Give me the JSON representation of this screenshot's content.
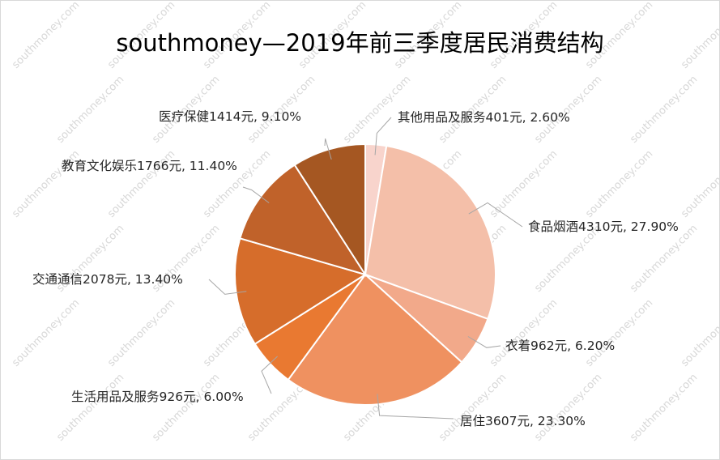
{
  "watermark": "southmoney.com",
  "chart_data": {
    "type": "pie",
    "title": "southmoney—2019年前三季度居民消费结构",
    "slices": [
      {
        "name": "其他用品及服务",
        "amount": 401,
        "value": 2.6,
        "label": "其他用品及服务401元, 2.60%",
        "color": "#f8d4cc"
      },
      {
        "name": "食品烟酒",
        "amount": 4310,
        "value": 27.9,
        "label": "食品烟酒4310元, 27.90%",
        "color": "#f4bfa9"
      },
      {
        "name": "衣着",
        "amount": 962,
        "value": 6.2,
        "label": "衣着962元, 6.20%",
        "color": "#f2a98a"
      },
      {
        "name": "居住",
        "amount": 3607,
        "value": 23.3,
        "label": "居住3607元, 23.30%",
        "color": "#ef9160"
      },
      {
        "name": "生活用品及服务",
        "amount": 926,
        "value": 6.0,
        "label": "生活用品及服务926元, 6.00%",
        "color": "#e97931"
      },
      {
        "name": "交通通信",
        "amount": 2078,
        "value": 13.4,
        "label": "交通通信2078元, 13.40%",
        "color": "#d66d2b"
      },
      {
        "name": "教育文化娱乐",
        "amount": 1766,
        "value": 11.4,
        "label": "教育文化娱乐1766元, 11.40%",
        "color": "#c0622a"
      },
      {
        "name": "医疗保健",
        "amount": 1414,
        "value": 9.1,
        "label": "医疗保健1414元, 9.10%",
        "color": "#a55722"
      }
    ]
  }
}
